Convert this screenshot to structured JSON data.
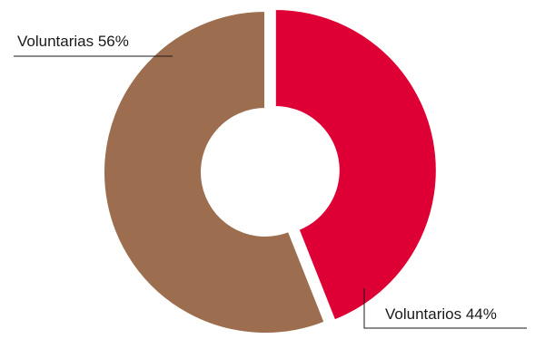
{
  "chart_data": {
    "type": "pie",
    "title": "",
    "slices": [
      {
        "label": "Voluntarios 44%",
        "category": "Voluntarios",
        "value": 44,
        "color": "#de0034"
      },
      {
        "label": "Voluntarias 56%",
        "category": "Voluntarias",
        "value": 56,
        "color": "#9d6d4f"
      }
    ]
  }
}
